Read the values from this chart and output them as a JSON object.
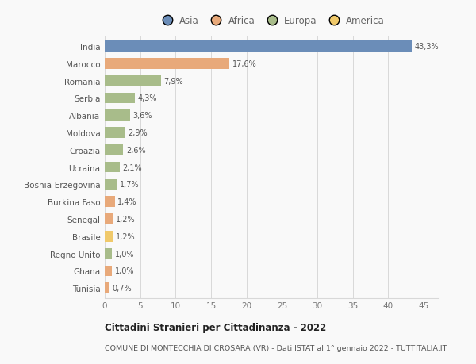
{
  "countries": [
    "India",
    "Marocco",
    "Romania",
    "Serbia",
    "Albania",
    "Moldova",
    "Croazia",
    "Ucraina",
    "Bosnia-Erzegovina",
    "Burkina Faso",
    "Senegal",
    "Brasile",
    "Regno Unito",
    "Ghana",
    "Tunisia"
  ],
  "values": [
    43.3,
    17.6,
    7.9,
    4.3,
    3.6,
    2.9,
    2.6,
    2.1,
    1.7,
    1.4,
    1.2,
    1.2,
    1.0,
    1.0,
    0.7
  ],
  "labels": [
    "43,3%",
    "17,6%",
    "7,9%",
    "4,3%",
    "3,6%",
    "2,9%",
    "2,6%",
    "2,1%",
    "1,7%",
    "1,4%",
    "1,2%",
    "1,2%",
    "1,0%",
    "1,0%",
    "0,7%"
  ],
  "continents": [
    "Asia",
    "Africa",
    "Europa",
    "Europa",
    "Europa",
    "Europa",
    "Europa",
    "Europa",
    "Europa",
    "Africa",
    "Africa",
    "America",
    "Europa",
    "Africa",
    "Africa"
  ],
  "colors": {
    "Asia": "#6b8db8",
    "Africa": "#e8a97a",
    "Europa": "#a8bc8a",
    "America": "#f0c96a"
  },
  "legend_order": [
    "Asia",
    "Africa",
    "Europa",
    "America"
  ],
  "title": "Cittadini Stranieri per Cittadinanza - 2022",
  "subtitle": "COMUNE DI MONTECCHIA DI CROSARA (VR) - Dati ISTAT al 1° gennaio 2022 - TUTTITALIA.IT",
  "xlim": [
    0,
    47
  ],
  "xticks": [
    0,
    5,
    10,
    15,
    20,
    25,
    30,
    35,
    40,
    45
  ],
  "bg_color": "#f9f9f9",
  "grid_color": "#d8d8d8"
}
